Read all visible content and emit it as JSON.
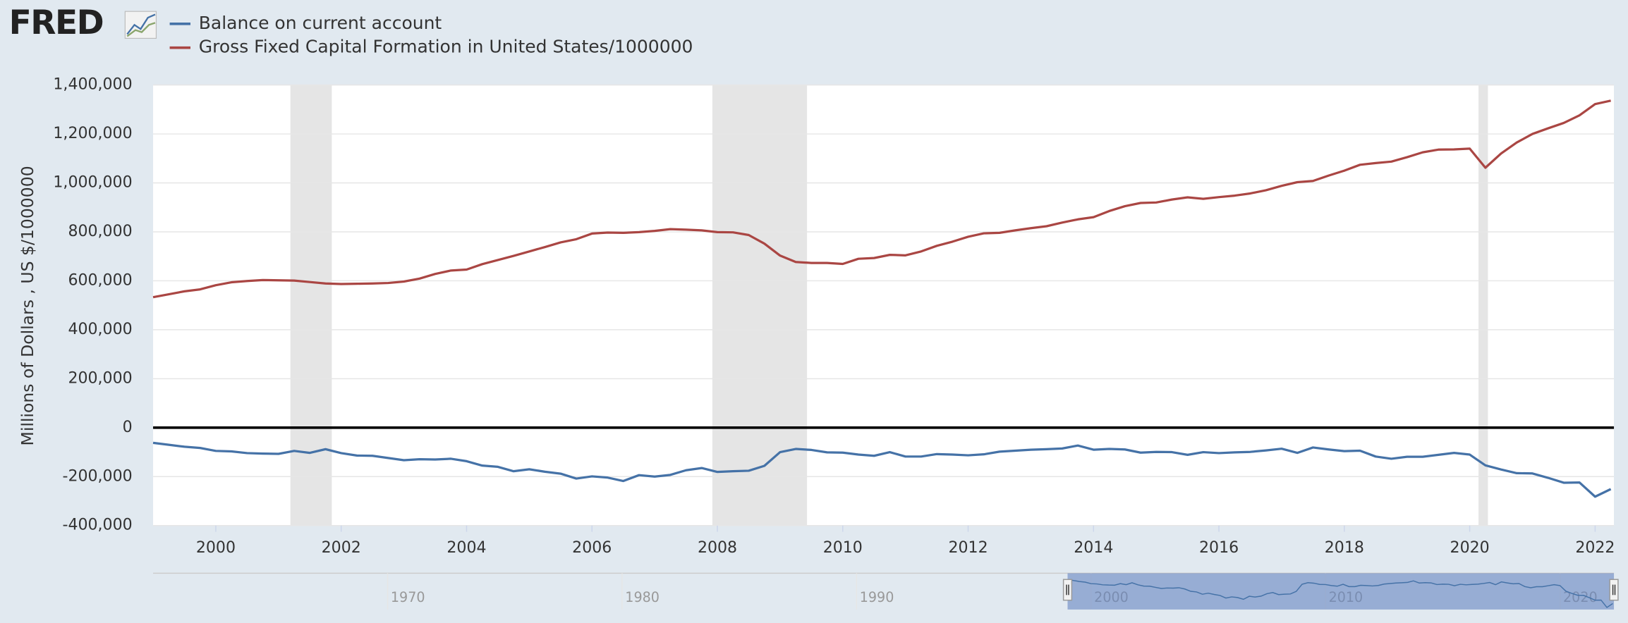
{
  "logo": "FRED",
  "chart_data": {
    "type": "line",
    "y_label": "Millions of Dollars , US $/1000000",
    "x": [
      1999,
      1999.25,
      1999.5,
      1999.75,
      2000,
      2000.25,
      2000.5,
      2000.75,
      2001,
      2001.25,
      2001.5,
      2001.75,
      2002,
      2002.25,
      2002.5,
      2002.75,
      2003,
      2003.25,
      2003.5,
      2003.75,
      2004,
      2004.25,
      2004.5,
      2004.75,
      2005,
      2005.25,
      2005.5,
      2005.75,
      2006,
      2006.25,
      2006.5,
      2006.75,
      2007,
      2007.25,
      2007.5,
      2007.75,
      2008,
      2008.25,
      2008.5,
      2008.75,
      2009,
      2009.25,
      2009.5,
      2009.75,
      2010,
      2010.25,
      2010.5,
      2010.75,
      2011,
      2011.25,
      2011.5,
      2011.75,
      2012,
      2012.25,
      2012.5,
      2012.75,
      2013,
      2013.25,
      2013.5,
      2013.75,
      2014,
      2014.25,
      2014.5,
      2014.75,
      2015,
      2015.25,
      2015.5,
      2015.75,
      2016,
      2016.25,
      2016.5,
      2016.75,
      2017,
      2017.25,
      2017.5,
      2017.75,
      2018,
      2018.25,
      2018.5,
      2018.75,
      2019,
      2019.25,
      2019.5,
      2019.75,
      2020,
      2020.25,
      2020.5,
      2020.75,
      2021,
      2021.25,
      2021.5,
      2021.75,
      2022,
      2022.25
    ],
    "series": [
      {
        "name": "Balance on current account",
        "color": "#4572a7",
        "values": [
          -62000,
          -70000,
          -78000,
          -83000,
          -95000,
          -97000,
          -104000,
          -106000,
          -107000,
          -95000,
          -103000,
          -88000,
          -104000,
          -114000,
          -115000,
          -124000,
          -133000,
          -129000,
          -130000,
          -127000,
          -137000,
          -155000,
          -160000,
          -178000,
          -170000,
          -180000,
          -188000,
          -208000,
          -199000,
          -204000,
          -218000,
          -194000,
          -200000,
          -193000,
          -174000,
          -165000,
          -181000,
          -178000,
          -176000,
          -156000,
          -100000,
          -87000,
          -91000,
          -101000,
          -102000,
          -110000,
          -115000,
          -100000,
          -118000,
          -118000,
          -108000,
          -110000,
          -113000,
          -109000,
          -98000,
          -94000,
          -90000,
          -88000,
          -85000,
          -73000,
          -90000,
          -87000,
          -89000,
          -102000,
          -99000,
          -100000,
          -111000,
          -100000,
          -104000,
          -101000,
          -99000,
          -93000,
          -86000,
          -103000,
          -81000,
          -89000,
          -96000,
          -94000,
          -118000,
          -127000,
          -119000,
          -119000,
          -111000,
          -103000,
          -110000,
          -154000,
          -171000,
          -186000,
          -187000,
          -205000,
          -225000,
          -224000,
          -282000,
          -251000
        ]
      },
      {
        "name": "Gross Fixed Capital Formation in United States/1000000",
        "color": "#aa4643",
        "values": [
          533000,
          545000,
          557000,
          565000,
          582000,
          594000,
          599000,
          603000,
          602000,
          601000,
          595000,
          589000,
          587000,
          588000,
          589000,
          591000,
          597000,
          609000,
          628000,
          642000,
          646000,
          668000,
          685000,
          702000,
          720000,
          738000,
          757000,
          770000,
          793000,
          797000,
          796000,
          799000,
          804000,
          811000,
          809000,
          806000,
          799000,
          798000,
          787000,
          752000,
          703000,
          677000,
          673000,
          673000,
          669000,
          690000,
          693000,
          706000,
          704000,
          720000,
          743000,
          760000,
          780000,
          794000,
          796000,
          806000,
          815000,
          823000,
          838000,
          851000,
          860000,
          885000,
          905000,
          918000,
          920000,
          932000,
          941000,
          935000,
          942000,
          948000,
          957000,
          970000,
          988000,
          1003000,
          1008000,
          1030000,
          1050000,
          1074000,
          1081000,
          1087000,
          1105000,
          1125000,
          1136000,
          1137000,
          1140000,
          1062000,
          1120000,
          1165000,
          1200000,
          1223000,
          1245000,
          1276000,
          1322000,
          1336000
        ]
      }
    ],
    "xlim": [
      1999,
      2022.3
    ],
    "xticks": [
      2000,
      2002,
      2004,
      2006,
      2008,
      2010,
      2012,
      2014,
      2016,
      2018,
      2020,
      2022
    ],
    "ylim": [
      -400000,
      1400000
    ],
    "yticks": [
      {
        "value": -400000,
        "label": "-400,000"
      },
      {
        "value": -200000,
        "label": "-200,000"
      },
      0,
      {
        "value": 200000,
        "label": "200,000"
      },
      {
        "value": 400000,
        "label": "400,000"
      },
      {
        "value": 600000,
        "label": "600,000"
      },
      {
        "value": 800000,
        "label": "800,000"
      },
      {
        "value": 1000000,
        "label": "1,000,000"
      },
      {
        "value": 1200000,
        "label": "1,200,000"
      },
      {
        "value": 1400000,
        "label": "1,400,000"
      }
    ],
    "grid": true,
    "zero_line": true,
    "recessions": [
      [
        2001.19,
        2001.85
      ],
      [
        2007.92,
        2009.43
      ],
      [
        2020.14,
        2020.29
      ]
    ],
    "legend": "top-left",
    "navigator": {
      "xlim": [
        1960,
        2022.3
      ],
      "xticks": [
        1970,
        1980,
        1990,
        2000,
        2010,
        2020
      ]
    }
  }
}
